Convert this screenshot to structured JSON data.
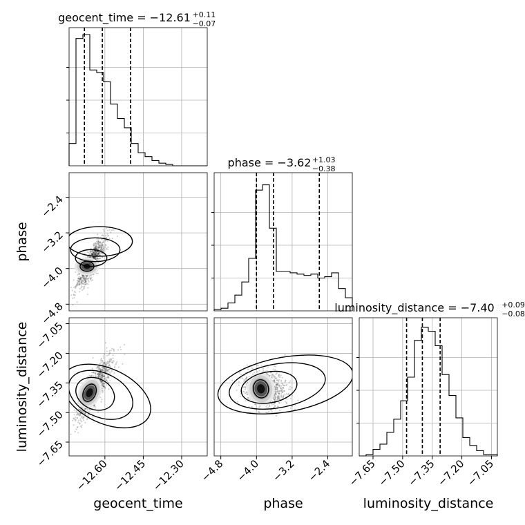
{
  "chart_data": {
    "type": "corner",
    "parameters": [
      "geocent_time",
      "phase",
      "luminosity_distance"
    ],
    "xlabels": [
      "geocent_time",
      "phase",
      "luminosity_distance"
    ],
    "ylabels": [
      "phase",
      "luminosity_distance"
    ],
    "titles": [
      {
        "param": "geocent_time",
        "text": "geocent_time = −12.61",
        "plus": "+0.11",
        "minus": "−0.07",
        "median": -12.61,
        "upper": 0.11,
        "lower": 0.07
      },
      {
        "param": "phase",
        "text": "phase = −3.62",
        "plus": "+1.03",
        "minus": "−0.38",
        "median": -3.62,
        "upper": 1.03,
        "lower": 0.38
      },
      {
        "param": "luminosity_distance",
        "text": "luminosity_distance = −7.40",
        "plus": "+0.09",
        "minus": "−0.08",
        "median": -7.4,
        "upper": 0.09,
        "lower": 0.08
      }
    ],
    "ranges": {
      "geocent_time": [
        -12.74,
        -12.2
      ],
      "phase": [
        -4.95,
        -1.85
      ],
      "luminosity_distance": [
        -7.72,
        -7.02
      ]
    },
    "ticks": {
      "geocent_time": [
        {
          "value": -12.6,
          "label": "−12.60"
        },
        {
          "value": -12.45,
          "label": "−12.45"
        },
        {
          "value": -12.3,
          "label": "−12.30"
        }
      ],
      "phase": [
        {
          "value": -4.8,
          "label": "−4.8"
        },
        {
          "value": -4.0,
          "label": "−4.0"
        },
        {
          "value": -3.2,
          "label": "−3.2"
        },
        {
          "value": -2.4,
          "label": "−2.4"
        }
      ],
      "luminosity_distance": [
        {
          "value": -7.65,
          "label": "−7.65"
        },
        {
          "value": -7.5,
          "label": "−7.50"
        },
        {
          "value": -7.35,
          "label": "−7.35"
        },
        {
          "value": -7.2,
          "label": "−7.20"
        },
        {
          "value": -7.05,
          "label": "−7.05"
        }
      ]
    },
    "quantiles": {
      "geocent_time": [
        -12.68,
        -12.61,
        -12.5
      ],
      "phase": [
        -4.0,
        -3.62,
        -2.59
      ],
      "luminosity_distance": [
        -7.48,
        -7.4,
        -7.31
      ]
    },
    "histograms": {
      "geocent_time": [
        0.17,
        0.97,
        1.0,
        0.73,
        0.71,
        0.64,
        0.47,
        0.36,
        0.29,
        0.17,
        0.1,
        0.07,
        0.04,
        0.02,
        0.01,
        0.0,
        0.0,
        0.0,
        0.0,
        0.0
      ],
      "phase": [
        0.01,
        0.02,
        0.06,
        0.12,
        0.22,
        0.4,
        0.92,
        0.96,
        0.63,
        0.3,
        0.3,
        0.29,
        0.28,
        0.27,
        0.28,
        0.25,
        0.26,
        0.29,
        0.17,
        0.1
      ],
      "luminosity_distance": [
        0.0,
        0.01,
        0.05,
        0.09,
        0.18,
        0.28,
        0.42,
        0.6,
        0.88,
        0.98,
        0.95,
        0.84,
        0.62,
        0.46,
        0.29,
        0.14,
        0.08,
        0.04,
        0.01,
        0.01
      ]
    },
    "hist_edges": {
      "geocent_time": [
        -12.74,
        -12.2
      ],
      "phase": [
        -4.95,
        -1.85
      ],
      "luminosity_distance": [
        -7.72,
        -7.02
      ]
    },
    "contour_centers": [
      {
        "pair": [
          "geocent_time",
          "phase"
        ],
        "peak": [
          -12.67,
          -3.95
        ],
        "trend": 5.0
      },
      {
        "pair": [
          "geocent_time",
          "luminosity_distance"
        ],
        "peak": [
          -12.66,
          -7.4
        ],
        "trend": 1.3
      },
      {
        "pair": [
          "phase",
          "luminosity_distance"
        ],
        "peak": [
          -3.9,
          -7.38
        ],
        "trend": 0.0
      }
    ],
    "grid": true,
    "colors": {
      "line": "#000000",
      "grid": "#b0b0b0",
      "points": "#000000"
    }
  }
}
